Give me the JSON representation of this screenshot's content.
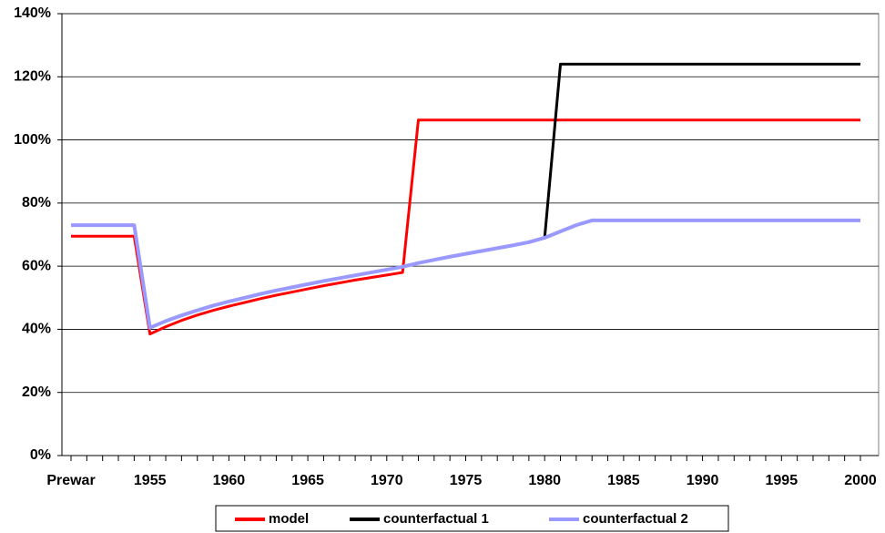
{
  "chart_data": {
    "type": "line",
    "categories": [
      "Prewar",
      null,
      null,
      null,
      null,
      "1955",
      null,
      null,
      null,
      null,
      "1960",
      null,
      null,
      null,
      null,
      "1965",
      null,
      null,
      null,
      null,
      "1970",
      null,
      null,
      null,
      null,
      "1975",
      null,
      null,
      null,
      null,
      "1980",
      null,
      null,
      null,
      null,
      "1985",
      null,
      null,
      null,
      null,
      "1990",
      null,
      null,
      null,
      null,
      "1995",
      null,
      null,
      null,
      null,
      "2000"
    ],
    "series": [
      {
        "name": "model",
        "color": "#ff0000",
        "values": [
          69.5,
          69.5,
          69.5,
          69.5,
          69.5,
          38.5,
          40.8,
          42.8,
          44.5,
          46,
          47.3,
          48.5,
          49.7,
          50.8,
          51.8,
          52.8,
          53.8,
          54.7,
          55.6,
          56.4,
          57.2,
          58,
          106.3,
          106.3,
          106.3,
          106.3,
          106.3,
          106.3,
          106.3,
          106.3,
          106.3,
          106.3,
          106.3,
          106.3,
          106.3,
          106.3,
          106.3,
          106.3,
          106.3,
          106.3,
          106.3,
          106.3,
          106.3,
          106.3,
          106.3,
          106.3,
          106.3,
          106.3,
          106.3,
          106.3,
          106.3
        ]
      },
      {
        "name": "counterfactual 1",
        "color": "#000000",
        "values": [
          73,
          73,
          73,
          73,
          73,
          40.5,
          42.6,
          44.4,
          46,
          47.5,
          48.8,
          50,
          51.2,
          52.3,
          53.3,
          54.3,
          55.3,
          56.2,
          57.1,
          58,
          58.9,
          59.8,
          61,
          62,
          63,
          63.9,
          64.8,
          65.7,
          66.6,
          67.6,
          69,
          124,
          124,
          124,
          124,
          124,
          124,
          124,
          124,
          124,
          124,
          124,
          124,
          124,
          124,
          124,
          124,
          124,
          124,
          124,
          124
        ]
      },
      {
        "name": "counterfactual 2",
        "color": "#9999ff",
        "values": [
          73,
          73,
          73,
          73,
          73,
          40.5,
          42.6,
          44.4,
          46,
          47.5,
          48.8,
          50,
          51.2,
          52.3,
          53.3,
          54.3,
          55.3,
          56.2,
          57.1,
          58,
          58.9,
          59.8,
          61,
          62,
          63,
          63.9,
          64.8,
          65.7,
          66.6,
          67.6,
          69,
          71,
          73,
          74.5,
          74.5,
          74.5,
          74.5,
          74.5,
          74.5,
          74.5,
          74.5,
          74.5,
          74.5,
          74.5,
          74.5,
          74.5,
          74.5,
          74.5,
          74.5,
          74.5,
          74.5
        ]
      }
    ],
    "ylim": [
      0,
      140
    ],
    "yticks": [
      {
        "value": 0,
        "label": "0%"
      },
      {
        "value": 20,
        "label": "20%"
      },
      {
        "value": 40,
        "label": "40%"
      },
      {
        "value": 60,
        "label": "60%"
      },
      {
        "value": 80,
        "label": "80%"
      },
      {
        "value": 100,
        "label": "100%"
      },
      {
        "value": 120,
        "label": "120%"
      },
      {
        "value": 140,
        "label": "140%"
      }
    ],
    "grid": true,
    "legend": "bottom"
  }
}
